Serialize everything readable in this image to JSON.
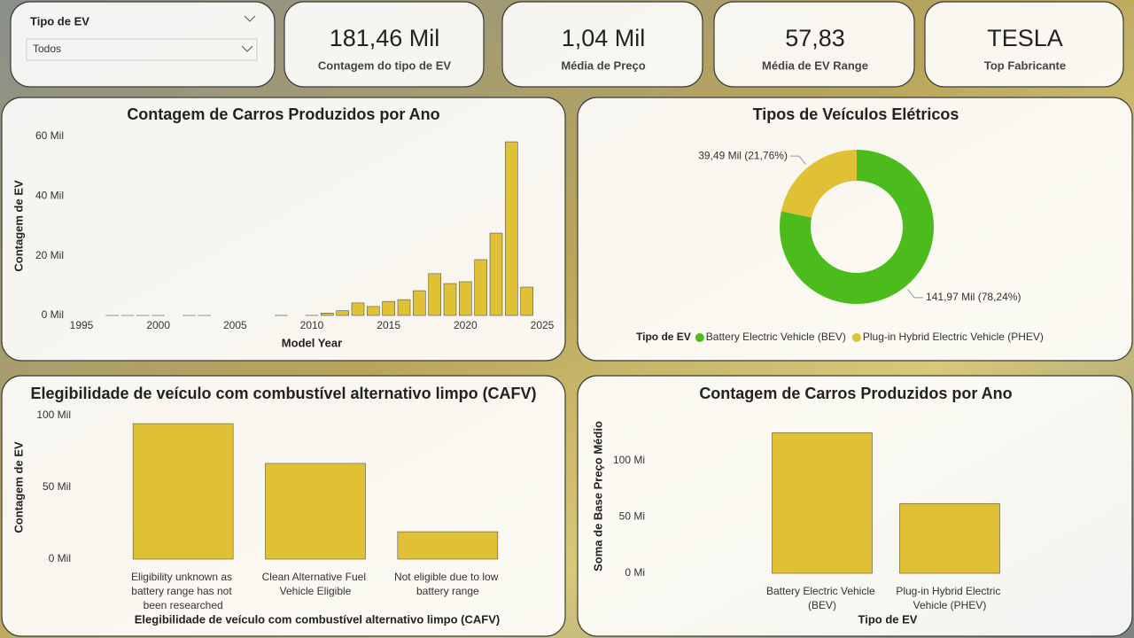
{
  "slicer": {
    "title": "Tipo de EV",
    "value": "Todos"
  },
  "cards": [
    {
      "value": "181,46 Mil",
      "label": "Contagem do tipo de EV"
    },
    {
      "value": "1,04 Mil",
      "label": "Média de Preço"
    },
    {
      "value": "57,83",
      "label": "Média de EV Range"
    },
    {
      "value": "TESLA",
      "label": "Top Fabricante"
    }
  ],
  "chart_data": [
    {
      "type": "bar",
      "title": "Contagem de Carros Produzidos por Ano",
      "xlabel": "Model Year",
      "ylabel": "Contagem de EV",
      "x": [
        1997,
        1998,
        1999,
        2000,
        2002,
        2003,
        2008,
        2010,
        2011,
        2012,
        2013,
        2014,
        2015,
        2016,
        2017,
        2018,
        2019,
        2020,
        2021,
        2022,
        2023,
        2024
      ],
      "values": [
        1,
        1,
        5,
        7,
        2,
        1,
        19,
        23,
        800,
        1600,
        4200,
        3000,
        4700,
        5300,
        8300,
        14000,
        10700,
        11300,
        18700,
        27600,
        58200,
        9500
      ],
      "color": "#e0c034",
      "xlim": [
        1995,
        2025
      ],
      "xticks": [
        1995,
        2000,
        2005,
        2010,
        2015,
        2020,
        2025
      ],
      "ylim": [
        0,
        60000
      ],
      "yticks": [
        {
          "value": 0,
          "label": "0 Mil"
        },
        {
          "value": 20000,
          "label": "20 Mil"
        },
        {
          "value": 40000,
          "label": "40 Mil"
        },
        {
          "value": 60000,
          "label": "60 Mil"
        }
      ]
    },
    {
      "type": "donut",
      "title": "Tipos de Veículos Elétricos",
      "legend_title": "Tipo de EV",
      "categories": [
        "Battery Electric Vehicle (BEV)",
        "Plug-in Hybrid Electric Vehicle (PHEV)"
      ],
      "values": [
        141970,
        39490
      ],
      "value_labels": [
        "141,97 Mil (78,24%)",
        "39,49 Mil (21,76%)"
      ],
      "colors": [
        "#4cbc1c",
        "#e0c034"
      ]
    },
    {
      "type": "bar",
      "title": "Elegibilidade de veículo com combustível alternativo limpo (CAFV)",
      "xlabel": "Elegibilidade de veículo com combustível alternativo limpo (CAFV)",
      "ylabel": "Contagem de EV",
      "categories": [
        "Eligibility unknown as battery range has not been researched",
        "Clean Alternative Fuel Vehicle Eligible",
        "Not eligible due to low battery range"
      ],
      "values": [
        94400,
        66700,
        19100
      ],
      "color": "#e0c034",
      "ylim": [
        0,
        100000
      ],
      "yticks": [
        {
          "value": 0,
          "label": "0 Mil"
        },
        {
          "value": 50000,
          "label": "50 Mil"
        },
        {
          "value": 100000,
          "label": "100 Mil"
        }
      ]
    },
    {
      "type": "bar",
      "title": "Contagem de Carros Produzidos por Ano",
      "xlabel": "Tipo de EV",
      "ylabel": "Soma de Base Preço Médio",
      "categories": [
        "Battery Electric Vehicle (BEV)",
        "Plug-in Hybrid Electric Vehicle (PHEV)"
      ],
      "values": [
        125000000,
        62000000
      ],
      "color": "#e0c034",
      "ylim": [
        0,
        100000000
      ],
      "yticks": [
        {
          "value": 0,
          "label": "0 Mi"
        },
        {
          "value": 50000000,
          "label": "50 Mi"
        },
        {
          "value": 100000000,
          "label": "100 Mi"
        }
      ]
    }
  ]
}
